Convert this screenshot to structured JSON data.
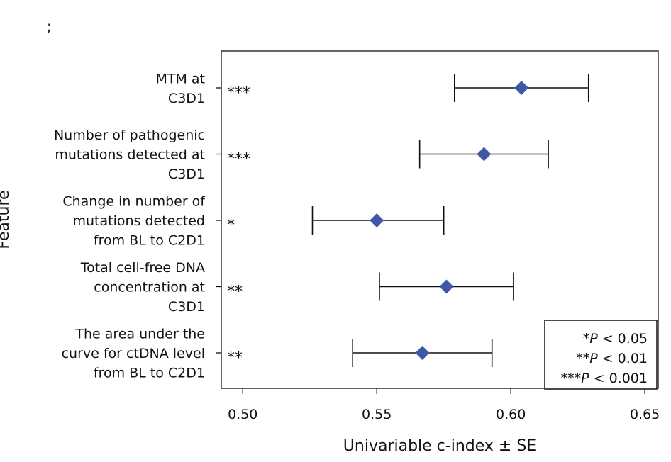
{
  "chart_data": {
    "type": "forest",
    "panel_label": ";",
    "xlabel": "Univariable c-index ± SE",
    "ylabel": "Feature",
    "xlim": [
      0.492,
      0.655
    ],
    "xticks": [
      {
        "value": 0.5,
        "label": "0.50"
      },
      {
        "value": 0.55,
        "label": "0.55"
      },
      {
        "value": 0.6,
        "label": "0.60"
      },
      {
        "value": 0.65,
        "label": "0.65"
      }
    ],
    "marker_color": "#3f58a6",
    "features": [
      {
        "label_lines": [
          "MTM at",
          "C3D1"
        ],
        "estimate": 0.604,
        "lower": 0.579,
        "upper": 0.629,
        "significance": "***"
      },
      {
        "label_lines": [
          "Number of pathogenic",
          "mutations detected at",
          "C3D1"
        ],
        "estimate": 0.59,
        "lower": 0.566,
        "upper": 0.614,
        "significance": "***"
      },
      {
        "label_lines": [
          "Change in number of",
          "mutations detected",
          "from BL to C2D1"
        ],
        "estimate": 0.55,
        "lower": 0.526,
        "upper": 0.575,
        "significance": "*"
      },
      {
        "label_lines": [
          "Total cell-free DNA",
          "concentration at",
          "C3D1"
        ],
        "estimate": 0.576,
        "lower": 0.551,
        "upper": 0.601,
        "significance": "**"
      },
      {
        "label_lines": [
          "The area under the",
          "curve for ctDNA level",
          "from BL to C2D1"
        ],
        "estimate": 0.567,
        "lower": 0.541,
        "upper": 0.593,
        "significance": "**"
      }
    ],
    "legend": {
      "position": "bottom-right",
      "entries": [
        {
          "stars": "*",
          "p": "P",
          "text": " < 0.05"
        },
        {
          "stars": "**",
          "p": "P",
          "text": " < 0.01"
        },
        {
          "stars": "***",
          "p": "P",
          "text": " < 0.001"
        }
      ]
    }
  }
}
